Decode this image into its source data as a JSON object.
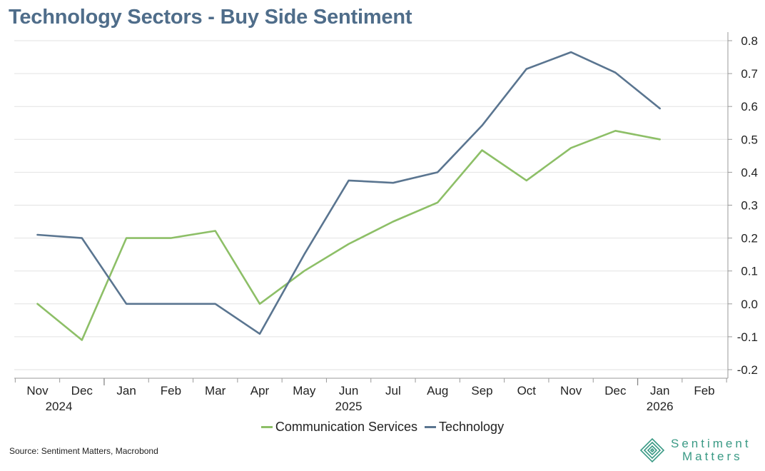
{
  "title": "Technology Sectors - Buy Side Sentiment",
  "chart_data": {
    "type": "line",
    "categories": [
      "Nov",
      "Dec",
      "Jan",
      "Feb",
      "Mar",
      "Apr",
      "May",
      "Jun",
      "Jul",
      "Aug",
      "Sep",
      "Oct",
      "Nov",
      "Dec",
      "Jan",
      "Feb"
    ],
    "year_labels": [
      {
        "category_index": 0,
        "label": "2024"
      },
      {
        "category_index": 7,
        "label": "2025"
      },
      {
        "category_index": 14,
        "label": "2026"
      }
    ],
    "yticks": [
      "0.8",
      "0.7",
      "0.6",
      "0.5",
      "0.4",
      "0.3",
      "0.2",
      "0.1",
      "0.0",
      "-0.1",
      "-0.2"
    ],
    "ylim": [
      -0.2,
      0.8
    ],
    "series": [
      {
        "name": "Communication Services",
        "color": "#8dbf67",
        "values": [
          0.0,
          -0.11,
          0.2,
          0.2,
          0.222,
          0.0,
          0.1,
          0.182,
          0.25,
          0.308,
          0.467,
          0.375,
          0.474,
          0.526,
          0.5,
          null
        ]
      },
      {
        "name": "Technology",
        "color": "#5a7590",
        "values": [
          0.21,
          0.2,
          0.0,
          0.0,
          0.0,
          -0.091,
          0.15,
          0.375,
          0.368,
          0.4,
          0.542,
          0.714,
          0.765,
          0.703,
          0.594,
          null
        ]
      }
    ],
    "legend_position": "bottom-center",
    "grid": true
  },
  "source": "Source: Sentiment Matters, Macrobond",
  "brand": {
    "line1": "Sentiment",
    "line2": "Matters",
    "color": "#3a9a85"
  }
}
